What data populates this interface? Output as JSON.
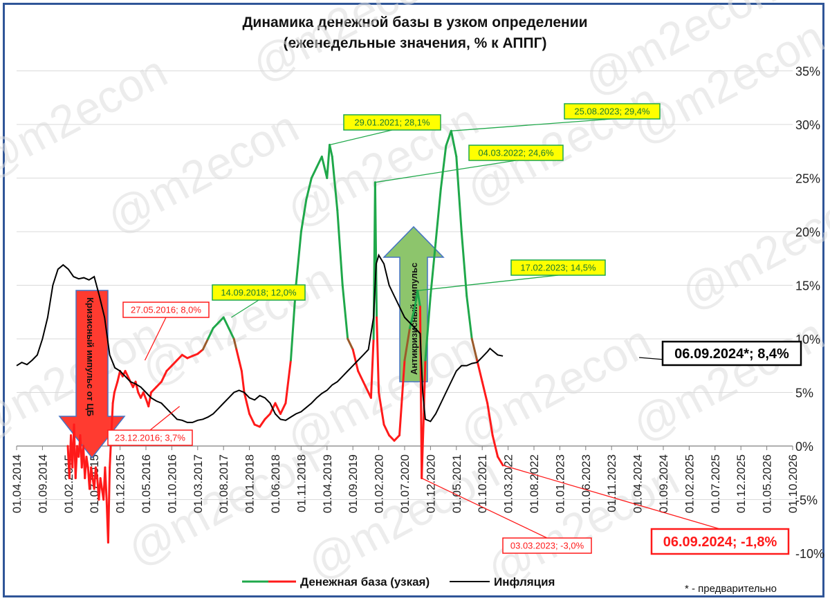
{
  "title_line1": "Динамика денежной базы в узком определении",
  "title_line2": "(еженедельные значения, % к АППГ)",
  "watermark": "@m2econ",
  "footnote": "* - предварительно",
  "colors": {
    "green": "#1fa84a",
    "red": "#ff1a1a",
    "black": "#000000",
    "annotation_fill": "#ffff00",
    "arrow_red": "#ff3b30",
    "arrow_green": "#8dc56c"
  },
  "arrows": [
    {
      "text": "Кризисный импульс от ЦБ",
      "direction": "down",
      "color": "#ff3b30"
    },
    {
      "text": "Антикризисный импульс",
      "direction": "up",
      "color": "#8dc56c"
    }
  ],
  "chart_data": {
    "type": "line",
    "x_tick_labels": [
      "01.04.2014",
      "01.09.2014",
      "01.02.2015",
      "01.07.2015",
      "01.12.2015",
      "01.05.2016",
      "01.10.2016",
      "01.03.2017",
      "01.08.2017",
      "01.01.2018",
      "01.06.2018",
      "01.11.2018",
      "01.04.2019",
      "01.09.2019",
      "01.02.2020",
      "01.07.2020",
      "01.12.2020",
      "01.05.2021",
      "01.10.2021",
      "01.03.2022",
      "01.08.2022",
      "01.01.2023",
      "01.06.2023",
      "01.11.2023",
      "01.04.2024",
      "01.09.2024",
      "01.02.2025",
      "01.07.2025",
      "01.12.2025",
      "01.05.2026",
      "01.10.2026"
    ],
    "y_tick_labels": [
      "35%",
      "30%",
      "25%",
      "20%",
      "15%",
      "10%",
      "5%",
      "0%",
      "-5%",
      "-10%"
    ],
    "ylim": [
      -10,
      35
    ],
    "x_unit": "months since 01.04.2014",
    "series": [
      {
        "name": "Денежная база (узкая)",
        "color_note": "green when above 10%, red when below",
        "points": [
          [
            9.9,
            0
          ],
          [
            10.2,
            -3
          ],
          [
            10.5,
            1
          ],
          [
            10.8,
            -2
          ],
          [
            11.1,
            2
          ],
          [
            11.4,
            -3
          ],
          [
            11.7,
            0
          ],
          [
            12,
            -1
          ],
          [
            12.3,
            1
          ],
          [
            12.6,
            -2
          ],
          [
            12.9,
            0
          ],
          [
            13.2,
            -3
          ],
          [
            13.5,
            -1
          ],
          [
            13.8,
            -2
          ],
          [
            14.1,
            -4
          ],
          [
            14.4,
            -2
          ],
          [
            14.7,
            -3
          ],
          [
            15,
            -4
          ],
          [
            15.3,
            -2
          ],
          [
            15.6,
            -3
          ],
          [
            15.9,
            -5
          ],
          [
            16.2,
            -3
          ],
          [
            16.5,
            -4
          ],
          [
            16.8,
            -5
          ],
          [
            17.1,
            -2
          ],
          [
            17.4,
            -5
          ],
          [
            17.7,
            -9
          ],
          [
            18,
            -2
          ],
          [
            18.3,
            1
          ],
          [
            18.6,
            4
          ],
          [
            18.9,
            5
          ],
          [
            19.5,
            6
          ],
          [
            20,
            7
          ],
          [
            20.5,
            6.5
          ],
          [
            21,
            7
          ],
          [
            21.5,
            6.5
          ],
          [
            22,
            6
          ],
          [
            22.5,
            5.5
          ],
          [
            23,
            6
          ],
          [
            23.5,
            5
          ],
          [
            24,
            4.5
          ],
          [
            24.5,
            5
          ],
          [
            25,
            4.4
          ],
          [
            25.5,
            3.7
          ],
          [
            26,
            5
          ],
          [
            27,
            5.5
          ],
          [
            28,
            6
          ],
          [
            29,
            7
          ],
          [
            30,
            7.5
          ],
          [
            31,
            8
          ],
          [
            32,
            8.5
          ],
          [
            33,
            8.2
          ],
          [
            34,
            8.4
          ],
          [
            35,
            8.6
          ],
          [
            36,
            9
          ],
          [
            37,
            10
          ],
          [
            38,
            11
          ],
          [
            39,
            11.5
          ],
          [
            40,
            12
          ],
          [
            41,
            11
          ],
          [
            42,
            10
          ],
          [
            42.5,
            9
          ],
          [
            43,
            8
          ],
          [
            43.5,
            7
          ],
          [
            44,
            5
          ],
          [
            45,
            3
          ],
          [
            46,
            2
          ],
          [
            47,
            1.8
          ],
          [
            48,
            2.5
          ],
          [
            49,
            3
          ],
          [
            50,
            4
          ],
          [
            51,
            3
          ],
          [
            52,
            4
          ],
          [
            53,
            8
          ],
          [
            54,
            15
          ],
          [
            55,
            20
          ],
          [
            56,
            23
          ],
          [
            57,
            25
          ],
          [
            58,
            26
          ],
          [
            59,
            27
          ],
          [
            60,
            25
          ],
          [
            60.5,
            28.1
          ],
          [
            61,
            27
          ],
          [
            62,
            22
          ],
          [
            63,
            15
          ],
          [
            64,
            10
          ],
          [
            65,
            9
          ],
          [
            66,
            7
          ],
          [
            67,
            6
          ],
          [
            68,
            5
          ],
          [
            68.5,
            4.5
          ],
          [
            69,
            10
          ],
          [
            69.3,
            24.6
          ],
          [
            69.6,
            12
          ],
          [
            70,
            5
          ],
          [
            71,
            2
          ],
          [
            72,
            1
          ],
          [
            73,
            0.5
          ],
          [
            74,
            1
          ],
          [
            75,
            8
          ],
          [
            76,
            11
          ],
          [
            77,
            13
          ],
          [
            77.5,
            14.5
          ],
          [
            78,
            13
          ],
          [
            78.3,
            -3
          ],
          [
            78.7,
            3
          ],
          [
            79,
            8
          ],
          [
            80,
            14
          ],
          [
            81,
            19
          ],
          [
            82,
            24
          ],
          [
            83,
            28
          ],
          [
            84,
            29.4
          ],
          [
            85,
            27
          ],
          [
            86,
            20
          ],
          [
            87,
            14
          ],
          [
            88,
            10
          ],
          [
            89,
            8
          ],
          [
            90,
            6
          ],
          [
            91,
            4
          ],
          [
            92,
            1
          ],
          [
            93,
            -1
          ],
          [
            94,
            -1.8
          ]
        ]
      },
      {
        "name": "Инфляция",
        "points": [
          [
            0,
            7.5
          ],
          [
            1,
            7.8
          ],
          [
            2,
            7.6
          ],
          [
            3,
            8
          ],
          [
            4,
            8.5
          ],
          [
            5,
            10
          ],
          [
            6,
            12
          ],
          [
            7,
            15
          ],
          [
            8,
            16.5
          ],
          [
            9,
            16.9
          ],
          [
            10,
            16.5
          ],
          [
            11,
            15.8
          ],
          [
            12,
            15.6
          ],
          [
            13,
            15.7
          ],
          [
            14,
            15.5
          ],
          [
            15,
            15.8
          ],
          [
            16,
            14
          ],
          [
            17,
            12
          ],
          [
            18,
            8.5
          ],
          [
            19,
            7.3
          ],
          [
            20,
            7
          ],
          [
            21,
            6.5
          ],
          [
            22,
            6
          ],
          [
            23,
            5.8
          ],
          [
            24,
            5.5
          ],
          [
            25,
            5
          ],
          [
            26,
            4.5
          ],
          [
            27,
            4.2
          ],
          [
            28,
            4
          ],
          [
            29,
            3.5
          ],
          [
            30,
            3
          ],
          [
            31,
            2.5
          ],
          [
            32,
            2.4
          ],
          [
            33,
            2.2
          ],
          [
            34,
            2.2
          ],
          [
            35,
            2.4
          ],
          [
            36,
            2.5
          ],
          [
            37,
            2.7
          ],
          [
            38,
            3
          ],
          [
            39,
            3.5
          ],
          [
            40,
            4
          ],
          [
            41,
            4.5
          ],
          [
            42,
            5
          ],
          [
            43,
            5.2
          ],
          [
            44,
            5
          ],
          [
            45,
            4.5
          ],
          [
            46,
            4.3
          ],
          [
            47,
            4.7
          ],
          [
            48,
            4.5
          ],
          [
            49,
            4
          ],
          [
            50,
            3
          ],
          [
            51,
            2.5
          ],
          [
            52,
            2.4
          ],
          [
            53,
            2.7
          ],
          [
            54,
            3
          ],
          [
            55,
            3.2
          ],
          [
            56,
            3.6
          ],
          [
            57,
            4
          ],
          [
            58,
            4.5
          ],
          [
            59,
            4.9
          ],
          [
            60,
            5.2
          ],
          [
            61,
            5.7
          ],
          [
            62,
            6
          ],
          [
            63,
            6.5
          ],
          [
            64,
            7
          ],
          [
            65,
            7.5
          ],
          [
            66,
            8
          ],
          [
            67,
            8.5
          ],
          [
            68,
            9
          ],
          [
            69,
            12
          ],
          [
            69.5,
            17
          ],
          [
            70,
            17.8
          ],
          [
            71,
            17
          ],
          [
            72,
            15
          ],
          [
            73,
            14
          ],
          [
            74,
            13
          ],
          [
            75,
            12
          ],
          [
            76,
            11.5
          ],
          [
            77,
            11
          ],
          [
            78,
            10.5
          ],
          [
            78.5,
            5
          ],
          [
            79,
            2.5
          ],
          [
            80,
            2.3
          ],
          [
            81,
            3
          ],
          [
            82,
            4
          ],
          [
            83,
            5
          ],
          [
            84,
            6
          ],
          [
            85,
            7
          ],
          [
            86,
            7.5
          ],
          [
            87,
            7.5
          ],
          [
            88,
            7.7
          ],
          [
            89,
            7.8
          ],
          [
            90,
            8.3
          ],
          [
            91,
            8.8
          ],
          [
            91.5,
            9.1
          ],
          [
            92,
            8.9
          ],
          [
            93,
            8.5
          ],
          [
            94,
            8.4
          ]
        ]
      }
    ],
    "annotations": [
      {
        "text": "14.09.2018; 12,0%",
        "style": "yellow"
      },
      {
        "text": "29.01.2021; 28,1%",
        "style": "yellow"
      },
      {
        "text": "04.03.2022; 24,6%",
        "style": "yellow"
      },
      {
        "text": "25.08.2023; 29,4%",
        "style": "yellow"
      },
      {
        "text": "17.02.2023; 14,5%",
        "style": "yellow"
      },
      {
        "text": "27.05.2016; 8,0%",
        "style": "red"
      },
      {
        "text": "23.12.2016; 3,7%",
        "style": "red"
      },
      {
        "text": "03.03.2023; -3,0%",
        "style": "red"
      },
      {
        "text": "06.09.2024; -1,8%",
        "style": "red-big"
      },
      {
        "text": "06.09.2024*; 8,4%",
        "style": "black-big"
      }
    ]
  }
}
